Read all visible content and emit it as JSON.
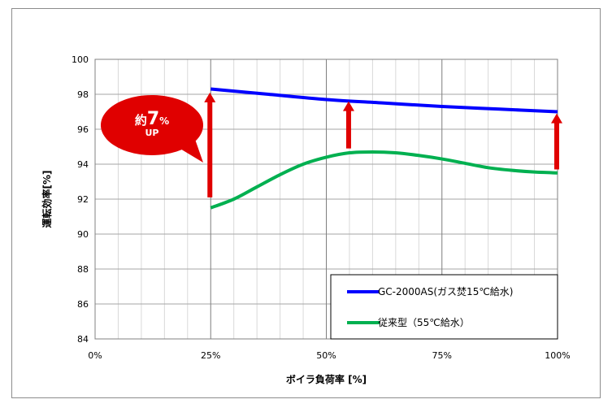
{
  "chart_data": {
    "type": "line",
    "xlabel": "ボイラ負荷率 [%]",
    "ylabel": "運転効率[%]",
    "xlim": [
      0,
      100
    ],
    "ylim": [
      84,
      100
    ],
    "x_ticks": [
      "0%",
      "25%",
      "50%",
      "75%",
      "100%"
    ],
    "y_ticks": [
      "84",
      "86",
      "88",
      "90",
      "92",
      "94",
      "96",
      "98",
      "100"
    ],
    "grid": true,
    "legend_position": "bottom-right",
    "series": [
      {
        "name": "GC-2000AS(ガス焚15℃給水)",
        "color": "#0000ff",
        "x": [
          25,
          37.5,
          50,
          62.5,
          75,
          87.5,
          100
        ],
        "y": [
          98.3,
          98.0,
          97.7,
          97.5,
          97.3,
          97.15,
          97.0
        ]
      },
      {
        "name": "従来型（55℃給水）",
        "color": "#00b050",
        "x": [
          25,
          30,
          35,
          40,
          45,
          50,
          55,
          60,
          65,
          70,
          75,
          80,
          85,
          90,
          95,
          100
        ],
        "y": [
          91.5,
          92.0,
          92.7,
          93.4,
          94.0,
          94.4,
          94.65,
          94.7,
          94.65,
          94.5,
          94.3,
          94.05,
          93.8,
          93.65,
          93.55,
          93.5
        ]
      }
    ],
    "arrows": [
      {
        "x": 25,
        "from": 92.1,
        "to": 98.1
      },
      {
        "x": 55,
        "from": 94.9,
        "to": 97.6
      },
      {
        "x": 100,
        "from": 93.7,
        "to": 96.9
      }
    ],
    "callout": {
      "prefix": "約",
      "value": "7",
      "unit": "%",
      "suffix": "UP",
      "color": "#e00000"
    }
  }
}
